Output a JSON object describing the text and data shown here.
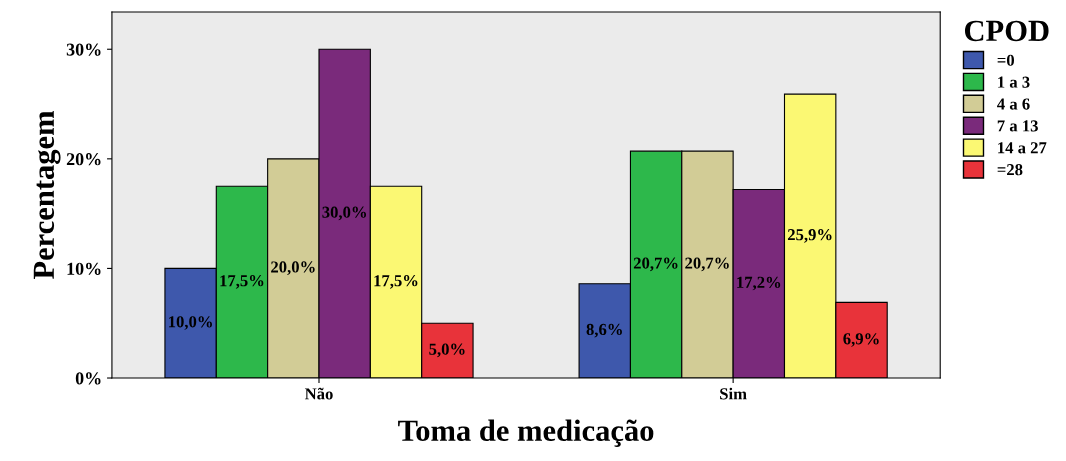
{
  "chart_data": {
    "type": "bar",
    "xlabel": "Toma de medicação",
    "ylabel": "Percentagem",
    "legend_title": "CPOD",
    "categories": [
      "Não",
      "Sim"
    ],
    "series": [
      {
        "name": "=0",
        "color": "#3e58ac",
        "values": [
          10.0,
          8.6
        ],
        "value_labels": [
          "10,0%",
          "8,6%"
        ]
      },
      {
        "name": "1 a 3",
        "color": "#2db84b",
        "values": [
          17.5,
          20.7
        ],
        "value_labels": [
          "17,5%",
          "20,7%"
        ]
      },
      {
        "name": "4 a 6",
        "color": "#d2cc96",
        "values": [
          20.0,
          20.7
        ],
        "value_labels": [
          "20,0%",
          "20,7%"
        ]
      },
      {
        "name": "7 a 13",
        "color": "#7a2a7b",
        "values": [
          30.0,
          17.2
        ],
        "value_labels": [
          "30,0%",
          "17,2%"
        ]
      },
      {
        "name": "14 a 27",
        "color": "#fbf873",
        "values": [
          17.5,
          25.9
        ],
        "value_labels": [
          "17,5%",
          "25,9%"
        ]
      },
      {
        "name": "=28",
        "color": "#e8333a",
        "values": [
          5.0,
          6.9
        ],
        "value_labels": [
          "5,0%",
          "6,9%"
        ]
      }
    ],
    "ylim": [
      0,
      33.4
    ],
    "yticks": [
      {
        "value": 0,
        "label": "0%"
      },
      {
        "value": 10,
        "label": "10%"
      },
      {
        "value": 20,
        "label": "20%"
      },
      {
        "value": 30,
        "label": "30%"
      }
    ],
    "grid": false,
    "legend": "right"
  }
}
